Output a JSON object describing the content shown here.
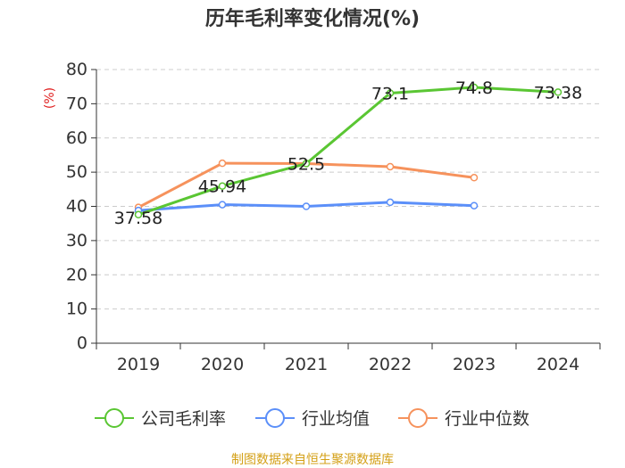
{
  "chart_data": {
    "type": "line",
    "title": "历年毛利率变化情况(%)",
    "ylabel": "(%)",
    "xlabel": "",
    "categories": [
      "2019",
      "2020",
      "2021",
      "2022",
      "2023",
      "2024"
    ],
    "ylim": [
      0,
      80
    ],
    "yticks": [
      0,
      10,
      20,
      30,
      40,
      50,
      60,
      70,
      80
    ],
    "grid": true,
    "legend_position": "bottom",
    "series": [
      {
        "name": "公司毛利率",
        "color": "#5ac633",
        "values": [
          37.58,
          45.94,
          52.5,
          73.1,
          74.8,
          73.38
        ],
        "labels": [
          "37.58",
          "45.94",
          "52.5",
          "73.1",
          "74.8",
          "73.38"
        ]
      },
      {
        "name": "行业均值",
        "color": "#5b8ff9",
        "values": [
          38.8,
          40.5,
          40.0,
          41.2,
          40.2,
          null
        ]
      },
      {
        "name": "行业中位数",
        "color": "#f6925c",
        "values": [
          39.7,
          52.6,
          52.5,
          51.6,
          48.4,
          null
        ]
      }
    ],
    "source": "制图数据来自恒生聚源数据库",
    "colors": {
      "axis": "#333333",
      "grid": "#cccccc",
      "ylabel": "#e02020",
      "source": "#d4a017"
    }
  }
}
